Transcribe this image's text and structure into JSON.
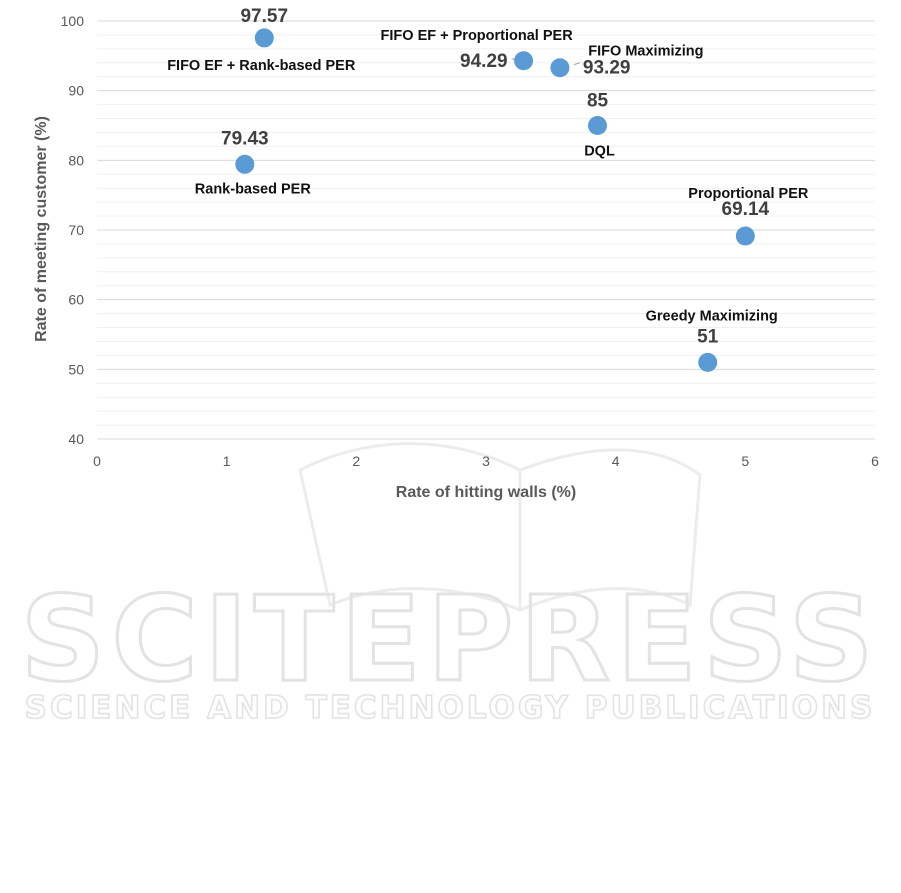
{
  "watermark": {
    "line1": "SCITEPRESS",
    "line2": "SCIENCE AND TECHNOLOGY PUBLICATIONS"
  },
  "chart_data": {
    "type": "scatter",
    "xlabel": "Rate of hitting walls (%)",
    "ylabel": "Rate of meeting customer (%)",
    "xlim": [
      0,
      6
    ],
    "ylim": [
      40,
      100
    ],
    "xticks": [
      "0",
      "1",
      "2",
      "3",
      "4",
      "5",
      "6"
    ],
    "yticks": [
      "40",
      "50",
      "60",
      "70",
      "80",
      "90",
      "100"
    ],
    "grid": true,
    "marker_color": "#5B9BD5",
    "points": [
      {
        "name": "FIFO EF + Rank-based PER",
        "x": 1.29,
        "y": 97.57,
        "value_label": "97.57"
      },
      {
        "name": "Rank-based PER",
        "x": 1.14,
        "y": 79.43,
        "value_label": "79.43"
      },
      {
        "name": "FIFO EF + Proportional PER",
        "x": 3.29,
        "y": 94.29,
        "value_label": "94.29"
      },
      {
        "name": "FIFO Maximizing",
        "x": 3.57,
        "y": 93.29,
        "value_label": "93.29"
      },
      {
        "name": "DQL",
        "x": 3.86,
        "y": 85,
        "value_label": "85"
      },
      {
        "name": "Proportional PER",
        "x": 5.0,
        "y": 69.14,
        "value_label": "69.14"
      },
      {
        "name": "Greedy Maximizing",
        "x": 4.71,
        "y": 51,
        "value_label": "51"
      }
    ]
  }
}
